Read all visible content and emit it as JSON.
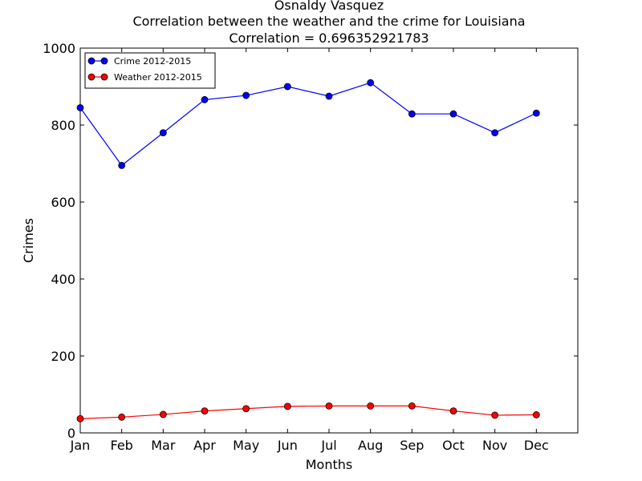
{
  "chart_data": {
    "type": "line",
    "title_lines": [
      "Osnaldy Vasquez",
      "Correlation between the weather and the crime for Louisiana",
      "Correlation = 0.696352921783"
    ],
    "xlabel": "Months",
    "ylabel": "Crimes",
    "categories": [
      "Jan",
      "Feb",
      "Mar",
      "Apr",
      "May",
      "Jun",
      "Jul",
      "Aug",
      "Sep",
      "Oct",
      "Nov",
      "Dec"
    ],
    "xlim": [
      0,
      12
    ],
    "ylim": [
      0,
      1000
    ],
    "yticks": [
      0,
      200,
      400,
      600,
      800,
      1000
    ],
    "grid": false,
    "legend_position": "top-left",
    "series": [
      {
        "name": "Crime 2012-2015",
        "color": "#0000ff",
        "values": [
          845,
          695,
          780,
          866,
          877,
          900,
          875,
          910,
          829,
          829,
          780,
          831
        ]
      },
      {
        "name": " Weather 2012-2015",
        "color": "#ff0000",
        "values": [
          37,
          41,
          48,
          57,
          63,
          69,
          70,
          70,
          70,
          57,
          46,
          47
        ]
      }
    ]
  }
}
